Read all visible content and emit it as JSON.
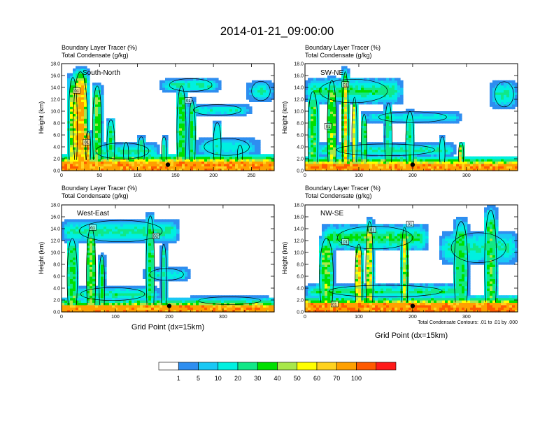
{
  "figure": {
    "title": "2014-01-21_09:00:00",
    "footnote": "Total Condensate Contours: .01 to .01 by .000",
    "colorbar": {
      "labels": [
        "1",
        "5",
        "10",
        "20",
        "30",
        "40",
        "50",
        "60",
        "70",
        "100"
      ],
      "colors": [
        "#ffffff",
        "#2e8ef0",
        "#19c8f5",
        "#00f0e0",
        "#11e887",
        "#00e000",
        "#a8e84a",
        "#ffff00",
        "#ffd21e",
        "#ffa000",
        "#ff5a00",
        "#ff1a1a"
      ]
    },
    "marker_color": "#000000",
    "contour_color": "#000000"
  },
  "chart_data": [
    {
      "type": "heatmap",
      "title_line1": "Boundary Layer Tracer    (%)",
      "title_line2": "Total Condensate    (g/kg)",
      "region_label": "South-North",
      "xlabel": "",
      "ylabel": "Height (km)",
      "xlim": [
        0,
        280
      ],
      "ylim": [
        0,
        18
      ],
      "xticks": [
        0,
        50,
        100,
        150,
        200,
        250
      ],
      "yticks": [
        "0.0",
        "2.0",
        "4.0",
        "6.0",
        "8.0",
        "10.0",
        "12.0",
        "14.0",
        "16.0",
        "18.0"
      ],
      "marker": {
        "x": 140,
        "y": 1.0
      },
      "contour_labels": [
        {
          "text": "01",
          "x": 20,
          "y": 13.5
        },
        {
          "text": "01",
          "x": 33,
          "y": 4.8
        },
        {
          "text": "01",
          "x": 167,
          "y": 11.8
        }
      ],
      "plumes": [
        {
          "x": 25,
          "w": 22,
          "top": 17.5,
          "i": 75
        },
        {
          "x": 15,
          "w": 14,
          "top": 16.5,
          "i": 50
        },
        {
          "x": 35,
          "w": 8,
          "top": 7,
          "i": 80
        },
        {
          "x": 47,
          "w": 14,
          "top": 15,
          "i": 40
        },
        {
          "x": 65,
          "w": 12,
          "top": 9,
          "i": 30
        },
        {
          "x": 85,
          "w": 8,
          "top": 5,
          "i": 20
        },
        {
          "x": 105,
          "w": 10,
          "top": 6,
          "i": 22
        },
        {
          "x": 135,
          "w": 8,
          "top": 6,
          "i": 25
        },
        {
          "x": 158,
          "w": 14,
          "top": 15,
          "i": 35
        },
        {
          "x": 172,
          "w": 10,
          "top": 12.5,
          "i": 30
        },
        {
          "x": 205,
          "w": 12,
          "top": 8.5,
          "i": 22
        },
        {
          "x": 235,
          "w": 8,
          "top": 4.5,
          "i": 15
        }
      ],
      "layers": [
        {
          "x0": 130,
          "x1": 210,
          "y0": 13.2,
          "y1": 15.6,
          "i": 25
        },
        {
          "x0": 160,
          "x1": 250,
          "y0": 9.2,
          "y1": 11.2,
          "i": 18
        },
        {
          "x0": 245,
          "x1": 280,
          "y0": 11.6,
          "y1": 15.2,
          "i": 25
        },
        {
          "x0": 30,
          "x1": 130,
          "y0": 1.8,
          "y1": 4.8,
          "i": 25
        },
        {
          "x0": 175,
          "x1": 260,
          "y0": 2.4,
          "y1": 5.6,
          "i": 18
        }
      ],
      "surface": {
        "height": 1.8,
        "i": 80
      }
    },
    {
      "type": "heatmap",
      "title_line1": "Boundary Layer Tracer    (%)",
      "title_line2": "Total Condensate    (g/kg)",
      "region_label": "SW-NE",
      "xlabel": "",
      "ylabel": "Height (km)",
      "xlim": [
        0,
        395
      ],
      "ylim": [
        0,
        18
      ],
      "xticks": [
        0,
        100,
        200,
        300
      ],
      "yticks": [
        "0.0",
        "2.0",
        "4.0",
        "6.0",
        "8.0",
        "10.0",
        "12.0",
        "14.0",
        "16.0",
        "18.0"
      ],
      "marker": {
        "x": 200,
        "y": 1.0
      },
      "contour_labels": [
        {
          "text": "01",
          "x": 75,
          "y": 14.5
        },
        {
          "text": "01",
          "x": 43,
          "y": 7.5
        }
      ],
      "plumes": [
        {
          "x": 15,
          "w": 22,
          "top": 14,
          "i": 35
        },
        {
          "x": 50,
          "w": 20,
          "top": 16,
          "i": 45
        },
        {
          "x": 75,
          "w": 14,
          "top": 17.5,
          "i": 60
        },
        {
          "x": 92,
          "w": 10,
          "top": 13,
          "i": 50
        },
        {
          "x": 110,
          "w": 12,
          "top": 10,
          "i": 30
        },
        {
          "x": 155,
          "w": 16,
          "top": 12,
          "i": 25
        },
        {
          "x": 195,
          "w": 18,
          "top": 10.5,
          "i": 25
        },
        {
          "x": 255,
          "w": 12,
          "top": 6,
          "i": 18
        },
        {
          "x": 290,
          "w": 10,
          "top": 5,
          "i": 55
        }
      ],
      "layers": [
        {
          "x0": 0,
          "x1": 180,
          "y0": 11.2,
          "y1": 15.6,
          "i": 30
        },
        {
          "x0": 110,
          "x1": 290,
          "y0": 8.0,
          "y1": 10.0,
          "i": 15
        },
        {
          "x0": 345,
          "x1": 395,
          "y0": 10.5,
          "y1": 15.2,
          "i": 25
        },
        {
          "x0": 20,
          "x1": 280,
          "y0": 2.4,
          "y1": 4.6,
          "i": 25
        }
      ],
      "surface": {
        "height": 1.4,
        "i": 82
      }
    },
    {
      "type": "heatmap",
      "title_line1": "Boundary Layer Tracer    (%)",
      "title_line2": "Total Condensate    (g/kg)",
      "region_label": "West-East",
      "xlabel": "Grid Point (dx=15km)",
      "ylabel": "Height (km)",
      "xlim": [
        0,
        395
      ],
      "ylim": [
        0,
        18
      ],
      "xticks": [
        0,
        100,
        200,
        300
      ],
      "yticks": [
        "0.0",
        "2.0",
        "4.0",
        "6.0",
        "8.0",
        "10.0",
        "12.0",
        "14.0",
        "16.0",
        "18.0"
      ],
      "marker": {
        "x": 200,
        "y": 1.0
      },
      "contour_labels": [
        {
          "text": "01",
          "x": 58,
          "y": 14.2
        },
        {
          "text": "01",
          "x": 175,
          "y": 12.8
        }
      ],
      "plumes": [
        {
          "x": 20,
          "w": 22,
          "top": 13,
          "i": 35
        },
        {
          "x": 55,
          "w": 20,
          "top": 15,
          "i": 40
        },
        {
          "x": 75,
          "w": 12,
          "top": 10,
          "i": 35
        },
        {
          "x": 165,
          "w": 18,
          "top": 17,
          "i": 30
        },
        {
          "x": 190,
          "w": 12,
          "top": 12,
          "i": 22
        }
      ],
      "layers": [
        {
          "x0": 0,
          "x1": 220,
          "y0": 11.6,
          "y1": 15.6,
          "i": 25
        },
        {
          "x0": 150,
          "x1": 240,
          "y0": 5.2,
          "y1": 7.4,
          "i": 18
        },
        {
          "x0": 10,
          "x1": 180,
          "y0": 1.8,
          "y1": 4.2,
          "i": 25
        },
        {
          "x0": 230,
          "x1": 395,
          "y0": 1.2,
          "y1": 2.6,
          "i": 15
        }
      ],
      "surface": {
        "height": 1.2,
        "i": 80
      }
    },
    {
      "type": "heatmap",
      "title_line1": "Boundary Layer Tracer    (%)",
      "title_line2": "Total Condensate    (g/kg)",
      "region_label": "NW-SE",
      "xlabel": "Grid Point (dx=15km)",
      "ylabel": "Height (km)",
      "xlim": [
        0,
        395
      ],
      "ylim": [
        0,
        18
      ],
      "xticks": [
        0,
        100,
        200,
        300
      ],
      "yticks": [
        "0.0",
        "2.0",
        "4.0",
        "6.0",
        "8.0",
        "10.0",
        "12.0",
        "14.0",
        "16.0",
        "18.0"
      ],
      "marker": {
        "x": 200,
        "y": 1.0
      },
      "contour_labels": [
        {
          "text": "01",
          "x": 125,
          "y": 13.8
        },
        {
          "text": "01",
          "x": 75,
          "y": 11.8
        },
        {
          "text": "01",
          "x": 195,
          "y": 14.8
        },
        {
          "text": "01",
          "x": 55,
          "y": 1.3
        }
      ],
      "plumes": [
        {
          "x": 40,
          "w": 30,
          "top": 13,
          "i": 40
        },
        {
          "x": 100,
          "w": 16,
          "top": 12,
          "i": 60
        },
        {
          "x": 120,
          "w": 16,
          "top": 16,
          "i": 55
        },
        {
          "x": 185,
          "w": 14,
          "top": 15,
          "i": 50
        },
        {
          "x": 290,
          "w": 30,
          "top": 16,
          "i": 30
        },
        {
          "x": 345,
          "w": 26,
          "top": 18,
          "i": 35
        }
      ],
      "layers": [
        {
          "x0": 30,
          "x1": 230,
          "y0": 10.4,
          "y1": 14.6,
          "i": 35
        },
        {
          "x0": 250,
          "x1": 395,
          "y0": 8.0,
          "y1": 13.6,
          "i": 25
        },
        {
          "x0": 0,
          "x1": 300,
          "y0": 2.4,
          "y1": 4.6,
          "i": 30
        }
      ],
      "surface": {
        "height": 1.6,
        "i": 85
      }
    }
  ]
}
